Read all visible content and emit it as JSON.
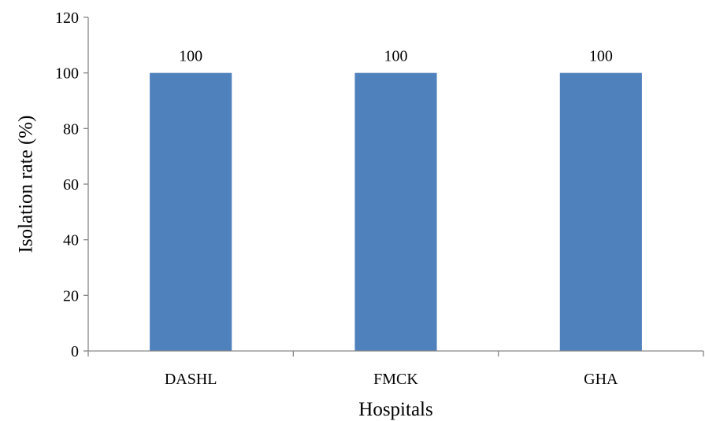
{
  "chart_data": {
    "type": "bar",
    "title": "",
    "xlabel": "Hospitals",
    "ylabel": "Isolation rate (%)",
    "categories": [
      "DASHL",
      "FMCK",
      "GHA"
    ],
    "values": [
      100,
      100,
      100
    ],
    "data_labels": [
      "100",
      "100",
      "100"
    ],
    "ylim": [
      0,
      120
    ],
    "yticks": [
      0,
      20,
      40,
      60,
      80,
      100,
      120
    ],
    "grid": false,
    "legend": "none",
    "bar_color": "#4F81BD",
    "axis_color": "#868686"
  }
}
